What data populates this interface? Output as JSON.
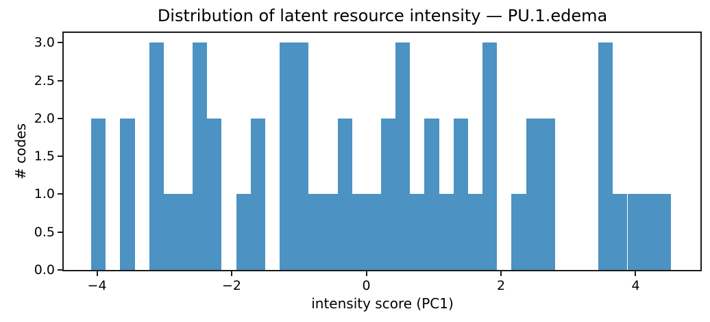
{
  "colors": {
    "bar": "#4c92c3",
    "axis": "#1a1a1a",
    "text": "#000000",
    "background": "#ffffff"
  },
  "chart_data": {
    "type": "bar",
    "subtype": "histogram",
    "title": "Distribution of latent resource intensity — PU.1.edema",
    "xlabel": "intensity score (PC1)",
    "ylabel": "# codes",
    "grid": false,
    "legend": null,
    "xlim": [
      -4.494,
      4.962
    ],
    "ylim": [
      0,
      3.13
    ],
    "bin_edges": [
      -4.086,
      -3.871,
      -3.656,
      -3.44,
      -3.225,
      -3.01,
      -2.794,
      -2.579,
      -2.364,
      -2.149,
      -1.933,
      -1.718,
      -1.503,
      -1.288,
      -1.072,
      -0.857,
      -0.642,
      -0.427,
      -0.211,
      0.004,
      0.219,
      0.434,
      0.65,
      0.865,
      1.08,
      1.295,
      1.511,
      1.726,
      1.941,
      2.156,
      2.372,
      2.587,
      2.802,
      3.017,
      3.233,
      3.448,
      3.663,
      3.878,
      4.094,
      4.309,
      4.524
    ],
    "counts": [
      2,
      0,
      2,
      0,
      3,
      1,
      1,
      3,
      2,
      0,
      1,
      2,
      0,
      3,
      3,
      1,
      1,
      2,
      1,
      1,
      2,
      3,
      1,
      2,
      1,
      2,
      1,
      3,
      0,
      1,
      2,
      2,
      0,
      0,
      0,
      3,
      1,
      1,
      1,
      1
    ],
    "x_ticks": [
      {
        "value": -4,
        "label": "−4"
      },
      {
        "value": -2,
        "label": "−2"
      },
      {
        "value": 0,
        "label": "0"
      },
      {
        "value": 2,
        "label": "2"
      },
      {
        "value": 4,
        "label": "4"
      }
    ],
    "y_ticks": [
      {
        "value": 0.0,
        "label": "0.0"
      },
      {
        "value": 0.5,
        "label": "0.5"
      },
      {
        "value": 1.0,
        "label": "1.0"
      },
      {
        "value": 1.5,
        "label": "1.5"
      },
      {
        "value": 2.0,
        "label": "2.0"
      },
      {
        "value": 2.5,
        "label": "2.5"
      },
      {
        "value": 3.0,
        "label": "3.0"
      }
    ]
  }
}
